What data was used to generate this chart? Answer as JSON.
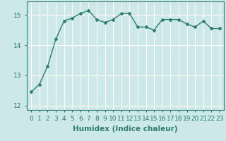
{
  "x": [
    0,
    1,
    2,
    3,
    4,
    5,
    6,
    7,
    8,
    9,
    10,
    11,
    12,
    13,
    14,
    15,
    16,
    17,
    18,
    19,
    20,
    21,
    22,
    23
  ],
  "y": [
    12.45,
    12.7,
    13.3,
    14.2,
    14.8,
    14.9,
    15.05,
    15.15,
    14.85,
    14.75,
    14.85,
    15.05,
    15.05,
    14.6,
    14.6,
    14.5,
    14.85,
    14.85,
    14.85,
    14.7,
    14.6,
    14.8,
    14.55,
    14.55
  ],
  "line_color": "#2e7d6e",
  "marker": "D",
  "marker_size": 2.0,
  "bg_color": "#cde8e8",
  "grid_color": "#ffffff",
  "xlabel": "Humidex (Indice chaleur)",
  "xlim": [
    -0.5,
    23.5
  ],
  "ylim": [
    11.85,
    15.45
  ],
  "yticks": [
    12,
    13,
    14,
    15
  ],
  "xtick_labels": [
    "0",
    "1",
    "2",
    "3",
    "4",
    "5",
    "6",
    "7",
    "8",
    "9",
    "10",
    "11",
    "12",
    "13",
    "14",
    "15",
    "16",
    "17",
    "18",
    "19",
    "20",
    "21",
    "22",
    "23"
  ],
  "xlabel_fontsize": 7.5,
  "tick_fontsize": 6.5,
  "line_width": 1.0,
  "spine_color": "#2e7d6e"
}
